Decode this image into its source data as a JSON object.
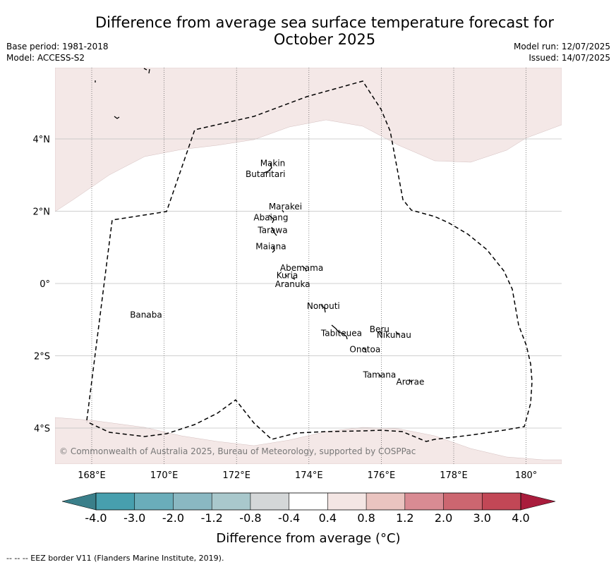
{
  "title_line1": "Difference from average sea surface temperature forecast for",
  "title_line2": "October 2025",
  "base_period": "Base period: 1981-2018",
  "model": "Model: ACCESS-S2",
  "model_run": "Model run: 12/07/2025",
  "issued": "Issued: 14/07/2025",
  "copyright": "© Commonwealth of Australia 2025, Bureau of Meteorology, supported by COSPPac",
  "footer": "--  --  -- EEZ border V11 (Flanders Marine Institute, 2019).",
  "lat_ticks": [
    {
      "lat": 4,
      "label": "4°N"
    },
    {
      "lat": 2,
      "label": "2°N"
    },
    {
      "lat": 0,
      "label": "0°"
    },
    {
      "lat": -2,
      "label": "2°S"
    },
    {
      "lat": -4,
      "label": "4°S"
    }
  ],
  "lon_ticks": [
    {
      "lon": 168,
      "label": "168°E"
    },
    {
      "lon": 170,
      "label": "170°E"
    },
    {
      "lon": 172,
      "label": "172°E"
    },
    {
      "lon": 174,
      "label": "174°E"
    },
    {
      "lon": 176,
      "label": "176°E"
    },
    {
      "lon": 178,
      "label": "178°E"
    },
    {
      "lon": 180,
      "label": "180°"
    }
  ],
  "islands": [
    {
      "name": "Makin",
      "lon": 173.0,
      "lat": 3.25
    },
    {
      "name": "Butaritari",
      "lon": 172.8,
      "lat": 2.95
    },
    {
      "name": "Marakei",
      "lon": 173.35,
      "lat": 2.05
    },
    {
      "name": "Abaiang",
      "lon": 172.95,
      "lat": 1.75
    },
    {
      "name": "Tarawa",
      "lon": 173.0,
      "lat": 1.4
    },
    {
      "name": "Maiana",
      "lon": 172.95,
      "lat": 0.95
    },
    {
      "name": "Abemama",
      "lon": 173.8,
      "lat": 0.35
    },
    {
      "name": "Kuria",
      "lon": 173.4,
      "lat": 0.15
    },
    {
      "name": "Aranuka",
      "lon": 173.55,
      "lat": -0.1
    },
    {
      "name": "Banaba",
      "lon": 169.5,
      "lat": -0.95
    },
    {
      "name": "Nonouti",
      "lon": 174.4,
      "lat": -0.7
    },
    {
      "name": "Beru",
      "lon": 175.95,
      "lat": -1.35
    },
    {
      "name": "Nikunau",
      "lon": 176.35,
      "lat": -1.5
    },
    {
      "name": "Tabiteuea",
      "lon": 174.9,
      "lat": -1.45
    },
    {
      "name": "Onotoa",
      "lon": 175.55,
      "lat": -1.9
    },
    {
      "name": "Tamana",
      "lon": 175.95,
      "lat": -2.6
    },
    {
      "name": "Arorae",
      "lon": 176.8,
      "lat": -2.8
    }
  ],
  "colorbar": {
    "labels": [
      "-4.0",
      "-3.0",
      "-2.0",
      "-1.2",
      "-0.8",
      "-0.4",
      "0.4",
      "0.8",
      "1.2",
      "2.0",
      "3.0",
      "4.0"
    ],
    "colors": [
      "#3a7f8a",
      "#479fae",
      "#6aadba",
      "#8ab8c2",
      "#a9c8cc",
      "#d4d7d8",
      "#ffffff",
      "#f4e6e4",
      "#eac4c0",
      "#d98b93",
      "#cc6670",
      "#c24756",
      "#a91c3c"
    ],
    "label": "Difference from average (°C)"
  },
  "colors": {
    "anomaly_0_4_to_0_8": "#f4e8e7",
    "grid": "#c0c0c0",
    "meridian": "#555555",
    "eez_border": "#000000",
    "copyright_text": "#777777"
  }
}
